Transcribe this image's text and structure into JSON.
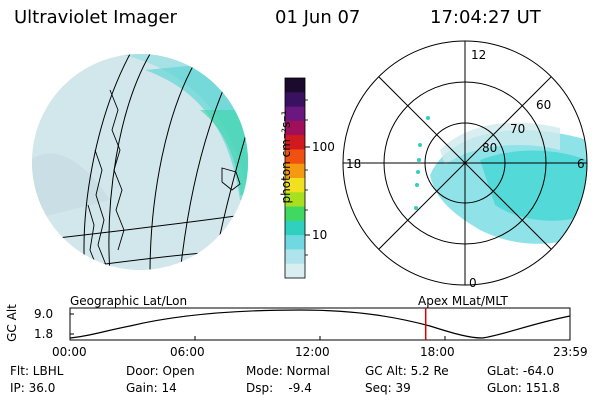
{
  "header": {
    "instrument": "Ultraviolet Imager",
    "date": "01 Jun 07",
    "time": "17:04:27 UT"
  },
  "colorbar": {
    "unit": "photon cm⁻²s⁻¹",
    "ticks": [
      "100",
      "10"
    ],
    "colors": [
      "#1a0a2e",
      "#3a1060",
      "#6a1780",
      "#a0105a",
      "#d01a20",
      "#f05010",
      "#f59a10",
      "#f0e020",
      "#a8e020",
      "#40d860",
      "#30d0c0",
      "#70d8e0",
      "#b0e4ec",
      "#d8eef0"
    ]
  },
  "polar": {
    "mlt_labels": [
      "12",
      "18",
      "6",
      "0"
    ],
    "lat_labels": [
      "60",
      "70",
      "80"
    ]
  },
  "labels": {
    "left_plot": "Geographic Lat/Lon",
    "right_plot": "Apex MLat/MLT"
  },
  "timeline": {
    "ylabel": "GC Alt",
    "y_ticks": [
      "9.0",
      "1.8"
    ],
    "x_ticks": [
      "00:00",
      "06:00",
      "12:00",
      "18:00",
      "23:59"
    ],
    "current_time_fraction": 0.7114,
    "marker_color": "#e00000"
  },
  "info": {
    "flt": "Flt: LBHL",
    "ip": "IP: 36.0",
    "door": "Door: Open",
    "gain": "Gain: 14",
    "mode": "Mode: Normal",
    "dsp": "Dsp:    -9.4",
    "gc_alt": "GC Alt: 5.2 Re",
    "seq": "Seq: 39",
    "glat": "GLat: -64.0",
    "glon": "GLon: 151.8"
  }
}
